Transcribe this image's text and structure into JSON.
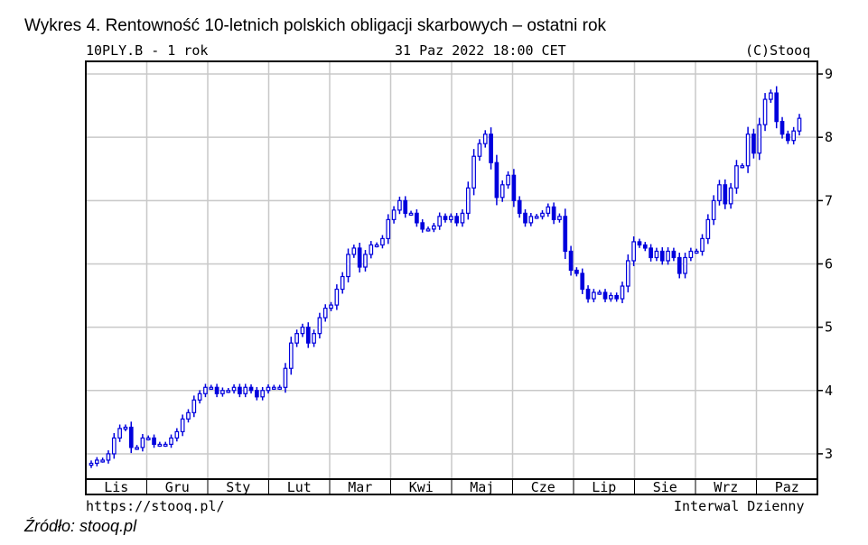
{
  "figure": {
    "title": "Wykres 4. Rentowność 10-letnich polskich obligacji skarbowych – ostatni rok",
    "source": "Źródło: stooq.pl"
  },
  "chart_header": {
    "symbol": "10PLY.B - 1 rok",
    "datetime": "31 Paz 2022 18:00 CET",
    "copyright": "(C)Stooq"
  },
  "chart_footer": {
    "url": "https://stooq.pl/",
    "interval": "Interwal Dzienny"
  },
  "colors": {
    "series": "#0000dd",
    "grid": "#c8c8c8",
    "frame": "#000000"
  },
  "chart_data": {
    "type": "candlestick",
    "xlabel": "",
    "ylabel": "",
    "ylim": [
      2.6,
      9.2
    ],
    "yticks": [
      3,
      4,
      5,
      6,
      7,
      8,
      9
    ],
    "months": [
      "Lis",
      "Gru",
      "Sty",
      "Lut",
      "Mar",
      "Kwi",
      "Maj",
      "Cze",
      "Lip",
      "Sie",
      "Wrz",
      "Paz"
    ],
    "grid": true,
    "close": [
      2.85,
      2.9,
      2.9,
      3.0,
      3.25,
      3.4,
      3.42,
      3.1,
      3.1,
      3.25,
      3.25,
      3.15,
      3.15,
      3.15,
      3.25,
      3.35,
      3.55,
      3.65,
      3.85,
      3.95,
      4.05,
      4.05,
      3.95,
      4.0,
      4.0,
      4.05,
      3.95,
      4.05,
      4.0,
      3.9,
      4.0,
      4.05,
      4.05,
      4.05,
      4.35,
      4.75,
      4.9,
      5.0,
      4.75,
      4.9,
      5.15,
      5.3,
      5.35,
      5.6,
      5.8,
      6.15,
      6.25,
      5.95,
      6.15,
      6.3,
      6.3,
      6.4,
      6.7,
      6.85,
      7.0,
      6.8,
      6.8,
      6.65,
      6.55,
      6.55,
      6.6,
      6.75,
      6.7,
      6.75,
      6.65,
      6.8,
      7.2,
      7.7,
      7.9,
      8.05,
      7.6,
      7.05,
      7.25,
      7.4,
      7.0,
      6.8,
      6.65,
      6.75,
      6.75,
      6.8,
      6.9,
      6.7,
      6.75,
      6.2,
      5.9,
      5.85,
      5.6,
      5.45,
      5.55,
      5.55,
      5.45,
      5.5,
      5.45,
      5.65,
      6.05,
      6.35,
      6.3,
      6.25,
      6.1,
      6.2,
      6.05,
      6.2,
      6.1,
      5.85,
      6.1,
      6.2,
      6.2,
      6.4,
      6.7,
      7.0,
      7.25,
      6.95,
      7.2,
      7.55,
      7.55,
      8.05,
      7.75,
      8.2,
      8.6,
      8.7,
      8.25,
      8.05,
      7.95,
      8.1,
      8.3
    ]
  }
}
